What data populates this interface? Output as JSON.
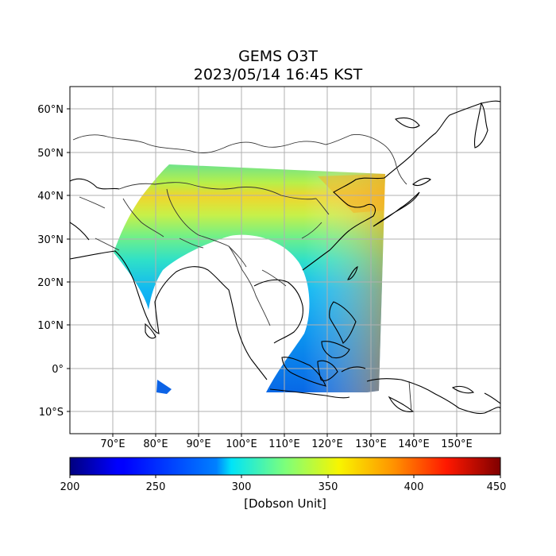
{
  "title": "GEMS O3T",
  "subtitle": "2023/05/14 16:45 KST",
  "map": {
    "lon_ticks": [
      "70°E",
      "80°E",
      "90°E",
      "100°E",
      "110°E",
      "120°E",
      "130°E",
      "140°E",
      "150°E"
    ],
    "lat_ticks": [
      "60°N",
      "50°N",
      "40°N",
      "30°N",
      "20°N",
      "10°N",
      "0°",
      "10°S"
    ],
    "lon_range": [
      60,
      160
    ],
    "lat_range": [
      -15,
      65
    ],
    "grid": true
  },
  "colorbar": {
    "label": "[Dobson Unit]",
    "ticks": [
      "200",
      "250",
      "300",
      "350",
      "400",
      "450"
    ],
    "range": [
      200,
      450
    ],
    "colormap": "jet"
  },
  "colors": {
    "coastline": "#000000",
    "borders": "#333333",
    "grid": "#b0b0b0"
  }
}
